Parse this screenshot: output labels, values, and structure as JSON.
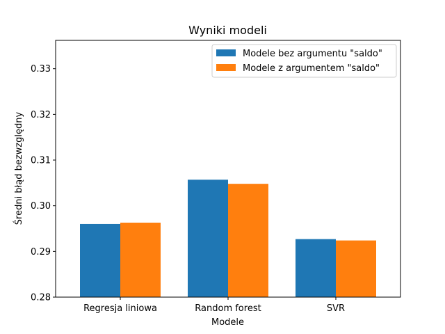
{
  "chart_data": {
    "type": "bar",
    "title": "Wyniki modeli",
    "xlabel": "Modele",
    "ylabel": "Średni błąd bezwzględny",
    "categories": [
      "Regresja liniowa",
      "Random forest",
      "SVR"
    ],
    "series": [
      {
        "name": "Modele bez argumentu \"saldo\"",
        "color": "#1f77b4",
        "values": [
          0.296,
          0.3057,
          0.2927
        ]
      },
      {
        "name": "Modele z argumentem \"saldo\"",
        "color": "#ff7f0e",
        "values": [
          0.2963,
          0.3048,
          0.2924
        ]
      }
    ],
    "ylim": [
      0.28,
      0.3362
    ],
    "yticks": [
      "0.28",
      "0.29",
      "0.30",
      "0.31",
      "0.32",
      "0.33"
    ],
    "grid": false,
    "legend_position": "top-right"
  }
}
